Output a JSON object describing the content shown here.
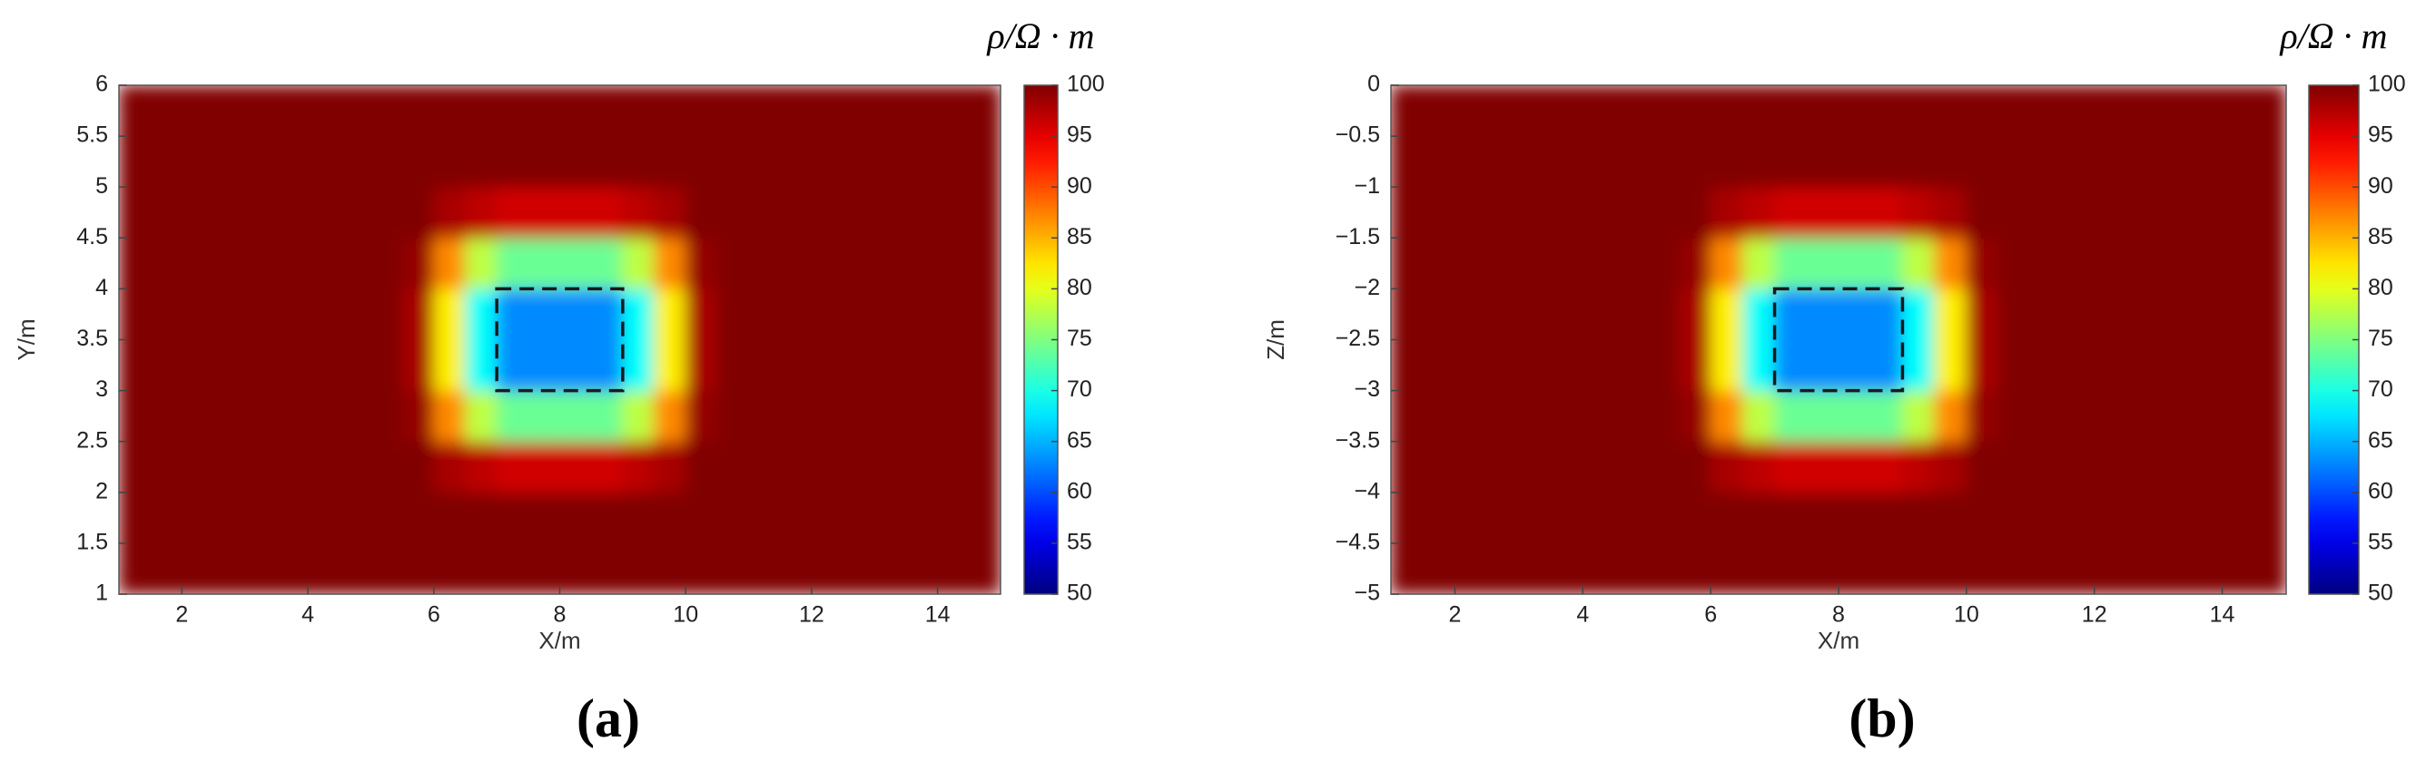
{
  "chart_data": [
    {
      "type": "heatmap",
      "colormap": "jet",
      "panel_label": "(a)",
      "xlabel": "X/m",
      "ylabel": "Y/m",
      "colorbar_label": "ρ/Ω · m",
      "xlim": [
        1,
        15
      ],
      "xticks": [
        2,
        4,
        6,
        8,
        10,
        12,
        14
      ],
      "ylim": [
        1,
        6
      ],
      "yticks": [
        1,
        1.5,
        2,
        2.5,
        3,
        3.5,
        4,
        4.5,
        5,
        5.5,
        6
      ],
      "clim": [
        50,
        100
      ],
      "cticks": [
        50,
        55,
        60,
        65,
        70,
        75,
        80,
        85,
        90,
        95,
        100
      ],
      "x": [
        1.25,
        1.75,
        2.25,
        2.75,
        3.25,
        3.75,
        4.25,
        4.75,
        5.25,
        5.75,
        6.25,
        6.75,
        7.25,
        7.75,
        8.25,
        8.75,
        9.25,
        9.75,
        10.25,
        10.75,
        11.25,
        11.75,
        12.25,
        12.75,
        13.25,
        13.75,
        14.25,
        14.75
      ],
      "y": [
        1.25,
        1.75,
        2.25,
        2.75,
        3.25,
        3.75,
        4.25,
        4.75,
        5.25,
        5.75
      ],
      "z": [
        [
          100,
          100,
          100,
          100,
          100,
          100,
          100,
          100,
          100,
          100,
          100,
          100,
          100,
          100,
          100,
          100,
          100,
          100,
          100,
          100,
          100,
          100,
          100,
          100,
          100,
          100,
          100,
          100
        ],
        [
          100,
          100,
          100,
          100,
          100,
          100,
          100,
          100,
          100,
          100,
          100,
          100,
          100,
          100,
          100,
          100,
          100,
          100,
          100,
          100,
          100,
          100,
          100,
          100,
          100,
          100,
          100,
          100
        ],
        [
          100,
          100,
          100,
          100,
          100,
          100,
          100,
          100,
          100,
          100,
          98,
          97,
          96,
          96,
          96,
          96,
          97,
          98,
          100,
          100,
          100,
          100,
          100,
          100,
          100,
          100,
          100,
          100
        ],
        [
          100,
          100,
          100,
          100,
          100,
          100,
          100,
          100,
          100,
          99,
          87,
          78,
          74,
          74,
          74,
          74,
          78,
          87,
          99,
          100,
          100,
          100,
          100,
          100,
          100,
          100,
          100,
          100
        ],
        [
          100,
          100,
          100,
          100,
          100,
          100,
          100,
          100,
          100,
          98,
          82,
          69,
          63,
          63,
          63,
          63,
          69,
          82,
          98,
          100,
          100,
          100,
          100,
          100,
          100,
          100,
          100,
          100
        ],
        [
          100,
          100,
          100,
          100,
          100,
          100,
          100,
          100,
          100,
          98,
          82,
          69,
          63,
          63,
          63,
          63,
          69,
          82,
          98,
          100,
          100,
          100,
          100,
          100,
          100,
          100,
          100,
          100
        ],
        [
          100,
          100,
          100,
          100,
          100,
          100,
          100,
          100,
          100,
          99,
          87,
          78,
          74,
          74,
          74,
          74,
          78,
          87,
          99,
          100,
          100,
          100,
          100,
          100,
          100,
          100,
          100,
          100
        ],
        [
          100,
          100,
          100,
          100,
          100,
          100,
          100,
          100,
          100,
          100,
          98,
          97,
          96,
          96,
          96,
          96,
          97,
          98,
          100,
          100,
          100,
          100,
          100,
          100,
          100,
          100,
          100,
          100
        ],
        [
          100,
          100,
          100,
          100,
          100,
          100,
          100,
          100,
          100,
          100,
          100,
          100,
          100,
          100,
          100,
          100,
          100,
          100,
          100,
          100,
          100,
          100,
          100,
          100,
          100,
          100,
          100,
          100
        ],
        [
          100,
          100,
          100,
          100,
          100,
          100,
          100,
          100,
          100,
          100,
          100,
          100,
          100,
          100,
          100,
          100,
          100,
          100,
          100,
          100,
          100,
          100,
          100,
          100,
          100,
          100,
          100,
          100
        ]
      ],
      "anomaly_box": {
        "x": [
          7,
          9
        ],
        "y": [
          3,
          4
        ]
      }
    },
    {
      "type": "heatmap",
      "colormap": "jet",
      "panel_label": "(b)",
      "xlabel": "X/m",
      "ylabel": "Z/m",
      "colorbar_label": "ρ/Ω · m",
      "xlim": [
        1,
        15
      ],
      "xticks": [
        2,
        4,
        6,
        8,
        10,
        12,
        14
      ],
      "ylim": [
        -5,
        0
      ],
      "yticks": [
        {
          "value": -5,
          "label": "−5"
        },
        {
          "value": -4.5,
          "label": "−4.5"
        },
        {
          "value": -4,
          "label": "−4"
        },
        {
          "value": -3.5,
          "label": "−3.5"
        },
        {
          "value": -3,
          "label": "−3"
        },
        {
          "value": -2.5,
          "label": "−2.5"
        },
        {
          "value": -2,
          "label": "−2"
        },
        {
          "value": -1.5,
          "label": "−1.5"
        },
        {
          "value": -1,
          "label": "−1"
        },
        {
          "value": -0.5,
          "label": "−0.5"
        },
        0
      ],
      "clim": [
        50,
        100
      ],
      "cticks": [
        50,
        55,
        60,
        65,
        70,
        75,
        80,
        85,
        90,
        95,
        100
      ],
      "x": [
        1.25,
        1.75,
        2.25,
        2.75,
        3.25,
        3.75,
        4.25,
        4.75,
        5.25,
        5.75,
        6.25,
        6.75,
        7.25,
        7.75,
        8.25,
        8.75,
        9.25,
        9.75,
        10.25,
        10.75,
        11.25,
        11.75,
        12.25,
        12.75,
        13.25,
        13.75,
        14.25,
        14.75
      ],
      "y": [
        -4.75,
        -4.25,
        -3.75,
        -3.25,
        -2.75,
        -2.25,
        -1.75,
        -1.25,
        -0.75,
        -0.25
      ],
      "z": [
        [
          100,
          100,
          100,
          100,
          100,
          100,
          100,
          100,
          100,
          100,
          100,
          100,
          100,
          100,
          100,
          100,
          100,
          100,
          100,
          100,
          100,
          100,
          100,
          100,
          100,
          100,
          100,
          100
        ],
        [
          100,
          100,
          100,
          100,
          100,
          100,
          100,
          100,
          100,
          100,
          100,
          100,
          100,
          100,
          100,
          100,
          100,
          100,
          100,
          100,
          100,
          100,
          100,
          100,
          100,
          100,
          100,
          100
        ],
        [
          100,
          100,
          100,
          100,
          100,
          100,
          100,
          100,
          100,
          100,
          98,
          97,
          96,
          96,
          96,
          96,
          97,
          98,
          100,
          100,
          100,
          100,
          100,
          100,
          100,
          100,
          100,
          100
        ],
        [
          100,
          100,
          100,
          100,
          100,
          100,
          100,
          100,
          100,
          99,
          87,
          78,
          74,
          74,
          74,
          74,
          78,
          87,
          99,
          100,
          100,
          100,
          100,
          100,
          100,
          100,
          100,
          100
        ],
        [
          100,
          100,
          100,
          100,
          100,
          100,
          100,
          100,
          100,
          98,
          82,
          69,
          63,
          63,
          63,
          63,
          69,
          82,
          98,
          100,
          100,
          100,
          100,
          100,
          100,
          100,
          100,
          100
        ],
        [
          100,
          100,
          100,
          100,
          100,
          100,
          100,
          100,
          100,
          98,
          82,
          69,
          63,
          63,
          63,
          63,
          69,
          82,
          98,
          100,
          100,
          100,
          100,
          100,
          100,
          100,
          100,
          100
        ],
        [
          100,
          100,
          100,
          100,
          100,
          100,
          100,
          100,
          100,
          99,
          87,
          78,
          74,
          74,
          74,
          74,
          78,
          87,
          99,
          100,
          100,
          100,
          100,
          100,
          100,
          100,
          100,
          100
        ],
        [
          100,
          100,
          100,
          100,
          100,
          100,
          100,
          100,
          100,
          100,
          98,
          97,
          96,
          96,
          96,
          96,
          97,
          98,
          100,
          100,
          100,
          100,
          100,
          100,
          100,
          100,
          100,
          100
        ],
        [
          100,
          100,
          100,
          100,
          100,
          100,
          100,
          100,
          100,
          100,
          100,
          100,
          100,
          100,
          100,
          100,
          100,
          100,
          100,
          100,
          100,
          100,
          100,
          100,
          100,
          100,
          100,
          100
        ],
        [
          100,
          100,
          100,
          100,
          100,
          100,
          100,
          100,
          100,
          100,
          100,
          100,
          100,
          100,
          100,
          100,
          100,
          100,
          100,
          100,
          100,
          100,
          100,
          100,
          100,
          100,
          100,
          100
        ]
      ],
      "anomaly_box": {
        "x": [
          7,
          9
        ],
        "y": [
          -3,
          -2
        ]
      }
    }
  ]
}
